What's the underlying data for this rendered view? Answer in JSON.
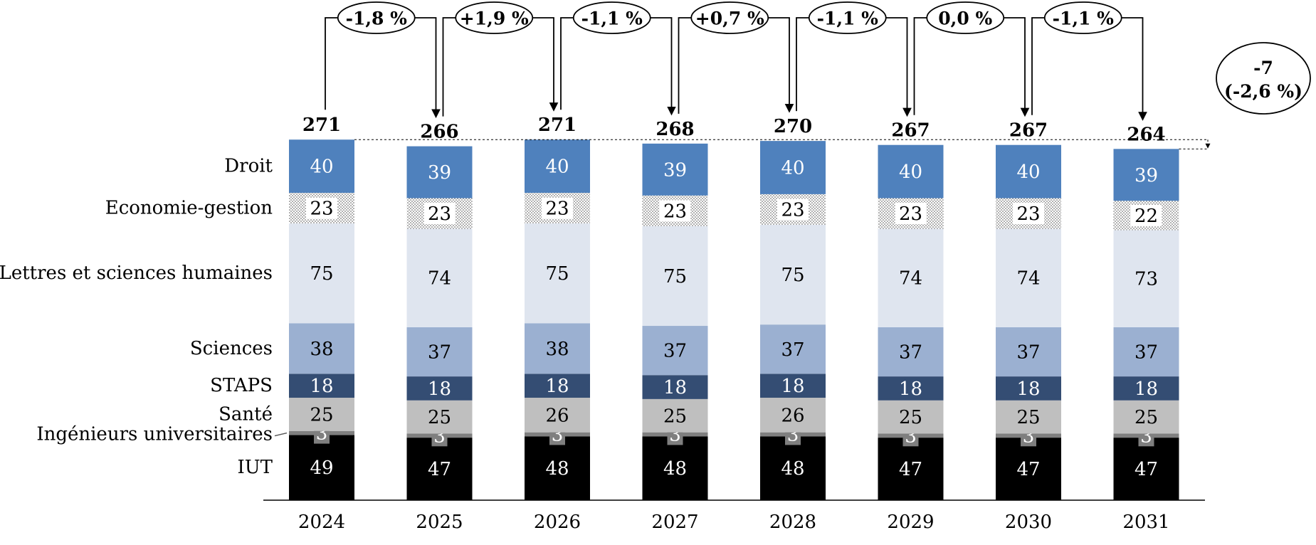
{
  "chart_data": {
    "type": "bar",
    "stacked": true,
    "categories": [
      "2024",
      "2025",
      "2026",
      "2027",
      "2028",
      "2029",
      "2030",
      "2031"
    ],
    "series": [
      {
        "name": "IUT",
        "values": [
          49,
          47,
          48,
          48,
          48,
          47,
          47,
          47
        ],
        "color": "#000000",
        "label_color": "#ffffff"
      },
      {
        "name": "Ingénieurs universitaires",
        "values": [
          3,
          3,
          3,
          3,
          3,
          3,
          3,
          3
        ],
        "color": "#7f7f7f",
        "label_color": "#ffffff"
      },
      {
        "name": "Santé",
        "values": [
          25,
          25,
          26,
          25,
          26,
          25,
          25,
          25
        ],
        "color": "#bfbfbf",
        "label_color": "#000000"
      },
      {
        "name": "STAPS",
        "values": [
          18,
          18,
          18,
          18,
          18,
          18,
          18,
          18
        ],
        "color": "#344d73",
        "label_color": "#ffffff"
      },
      {
        "name": "Sciences",
        "values": [
          38,
          37,
          38,
          37,
          37,
          37,
          37,
          37
        ],
        "color": "#9bb0d1",
        "label_color": "#000000"
      },
      {
        "name": "Lettres et sciences humaines",
        "values": [
          75,
          74,
          75,
          75,
          75,
          74,
          74,
          73
        ],
        "color": "#dfe5ef",
        "label_color": "#000000"
      },
      {
        "name": "Economie-gestion",
        "values": [
          23,
          23,
          23,
          23,
          23,
          23,
          23,
          22
        ],
        "color": "dotted",
        "label_color": "#000000"
      },
      {
        "name": "Droit",
        "values": [
          40,
          39,
          40,
          39,
          40,
          40,
          40,
          39
        ],
        "color": "#4f81bd",
        "label_color": "#ffffff"
      }
    ],
    "totals": [
      "271",
      "266",
      "271",
      "268",
      "270",
      "267",
      "267",
      "264"
    ],
    "changes": [
      "-1,8 %",
      "+1,9 %",
      "-1,1 %",
      "+0,7 %",
      "-1,1 %",
      "0,0 %",
      "-1,1 %"
    ],
    "overall_change": {
      "absolute": "-7",
      "percent": "(-2,6 %)"
    },
    "legend": "left, category labels beside first bar",
    "grid": false
  }
}
